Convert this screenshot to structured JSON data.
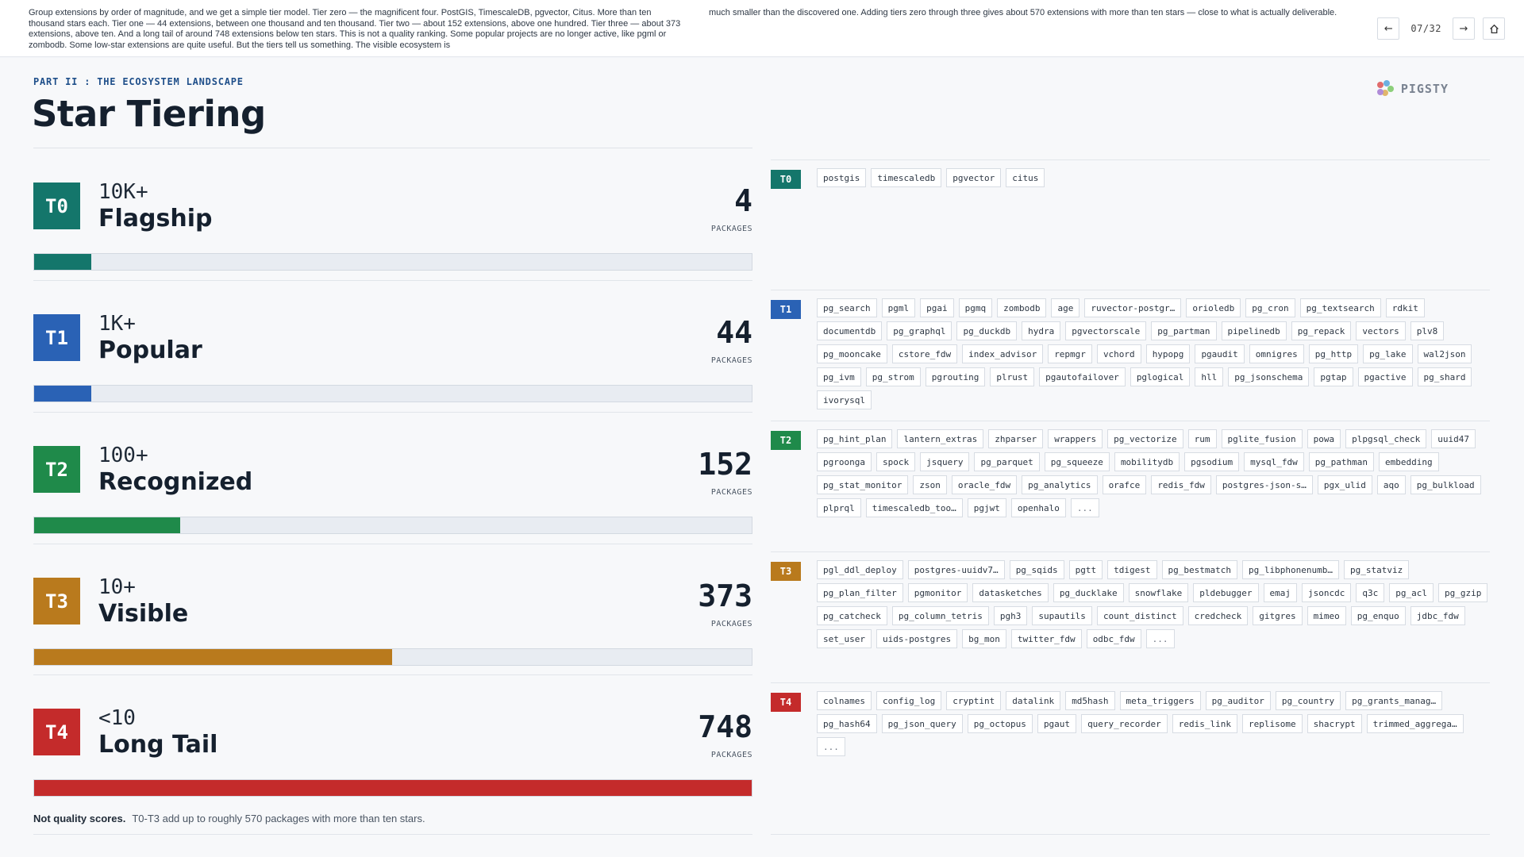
{
  "notes": {
    "left": "Group extensions by order of magnitude, and we get a simple tier model.    Tier zero — the magnificent four. PostGIS, TimescaleDB, pgvector, Citus. More than ten thousand stars each.    Tier one — 44 extensions, between one thousand and ten thousand.    Tier two — about 152 extensions, above one hundred.    Tier three — about 373 extensions, above ten.    And a long tail of around 748 extensions below ten stars.    This is not a quality ranking. Some popular projects are no longer active, like pgml or zombodb. Some low-star extensions are quite useful.    But the tiers tell us something. The visible ecosystem is",
    "right": "much smaller than the discovered one. Adding tiers zero through three gives about 570 extensions with more than ten stars — close to what is actually deliverable."
  },
  "nav": {
    "prev_icon": "arrow-left-icon",
    "page": "07/32",
    "next_icon": "arrow-right-icon",
    "home_icon": "home-icon"
  },
  "slide": {
    "kicker": "PART II : THE ECOSYSTEM LANDSCAPE",
    "title": "Star Tiering",
    "brand": "PIGSTY",
    "footer_bold": "Not quality scores.",
    "footer_text": "T0-T3 add up to roughly 570 packages with more than ten stars."
  },
  "colors": {
    "T0": "#14766b",
    "T1": "#2a62b5",
    "T2": "#1f8a4a",
    "T3": "#b97a1d",
    "T4": "#c42b2b"
  },
  "tiers": [
    {
      "id": "T0",
      "range": "10K+",
      "name": "Flagship",
      "count": "4",
      "count_label": "PACKAGES",
      "fill": 0.08
    },
    {
      "id": "T1",
      "range": "1K+",
      "name": "Popular",
      "count": "44",
      "count_label": "PACKAGES",
      "fill": 0.08
    },
    {
      "id": "T2",
      "range": "100+",
      "name": "Recognized",
      "count": "152",
      "count_label": "PACKAGES",
      "fill": 0.203
    },
    {
      "id": "T3",
      "range": "10+",
      "name": "Visible",
      "count": "373",
      "count_label": "PACKAGES",
      "fill": 0.499
    },
    {
      "id": "T4",
      "range": "<10",
      "name": "Long Tail",
      "count": "748",
      "count_label": "PACKAGES",
      "fill": 1.0
    }
  ],
  "tag_sections": [
    {
      "id": "T0",
      "tags": [
        "postgis",
        "timescaledb",
        "pgvector",
        "citus"
      ]
    },
    {
      "id": "T1",
      "tags": [
        "pg_search",
        "pgml",
        "pgai",
        "pgmq",
        "zombodb",
        "age",
        "ruvector-postgr…",
        "orioledb",
        "pg_cron",
        "pg_textsearch",
        "rdkit",
        "documentdb",
        "pg_graphql",
        "pg_duckdb",
        "hydra",
        "pgvectorscale",
        "pg_partman",
        "pipelinedb",
        "pg_repack",
        "vectors",
        "plv8",
        "pg_mooncake",
        "cstore_fdw",
        "index_advisor",
        "repmgr",
        "vchord",
        "hypopg",
        "pgaudit",
        "omnigres",
        "pg_http",
        "pg_lake",
        "wal2json",
        "pg_ivm",
        "pg_strom",
        "pgrouting",
        "plrust",
        "pgautofailover",
        "pglogical",
        "hll",
        "pg_jsonschema",
        "pgtap",
        "pgactive",
        "pg_shard",
        "ivorysql"
      ]
    },
    {
      "id": "T2",
      "tags": [
        "pg_hint_plan",
        "lantern_extras",
        "zhparser",
        "wrappers",
        "pg_vectorize",
        "rum",
        "pglite_fusion",
        "powa",
        "plpgsql_check",
        "uuid47",
        "pgroonga",
        "spock",
        "jsquery",
        "pg_parquet",
        "pg_squeeze",
        "mobilitydb",
        "pgsodium",
        "mysql_fdw",
        "pg_pathman",
        "embedding",
        "pg_stat_monitor",
        "zson",
        "oracle_fdw",
        "pg_analytics",
        "orafce",
        "redis_fdw",
        "postgres-json-s…",
        "pgx_ulid",
        "aqo",
        "pg_bulkload",
        "plprql",
        "timescaledb_too…",
        "pgjwt",
        "openhalo",
        "..."
      ]
    },
    {
      "id": "T3",
      "tags": [
        "pgl_ddl_deploy",
        "postgres-uuidv7…",
        "pg_sqids",
        "pgtt",
        "tdigest",
        "pg_bestmatch",
        "pg_libphonenumb…",
        "pg_statviz",
        "pg_plan_filter",
        "pgmonitor",
        "datasketches",
        "pg_ducklake",
        "snowflake",
        "pldebugger",
        "emaj",
        "jsoncdc",
        "q3c",
        "pg_acl",
        "pg_gzip",
        "pg_catcheck",
        "pg_column_tetris",
        "pgh3",
        "supautils",
        "count_distinct",
        "credcheck",
        "gitgres",
        "mimeo",
        "pg_enquo",
        "jdbc_fdw",
        "set_user",
        "uids-postgres",
        "bg_mon",
        "twitter_fdw",
        "odbc_fdw",
        "..."
      ]
    },
    {
      "id": "T4",
      "tags": [
        "colnames",
        "config_log",
        "cryptint",
        "datalink",
        "md5hash",
        "meta_triggers",
        "pg_auditor",
        "pg_country",
        "pg_grants_manag…",
        "pg_hash64",
        "pg_json_query",
        "pg_octopus",
        "pgaut",
        "query_recorder",
        "redis_link",
        "replisome",
        "shacrypt",
        "trimmed_aggrega…",
        "..."
      ]
    }
  ]
}
